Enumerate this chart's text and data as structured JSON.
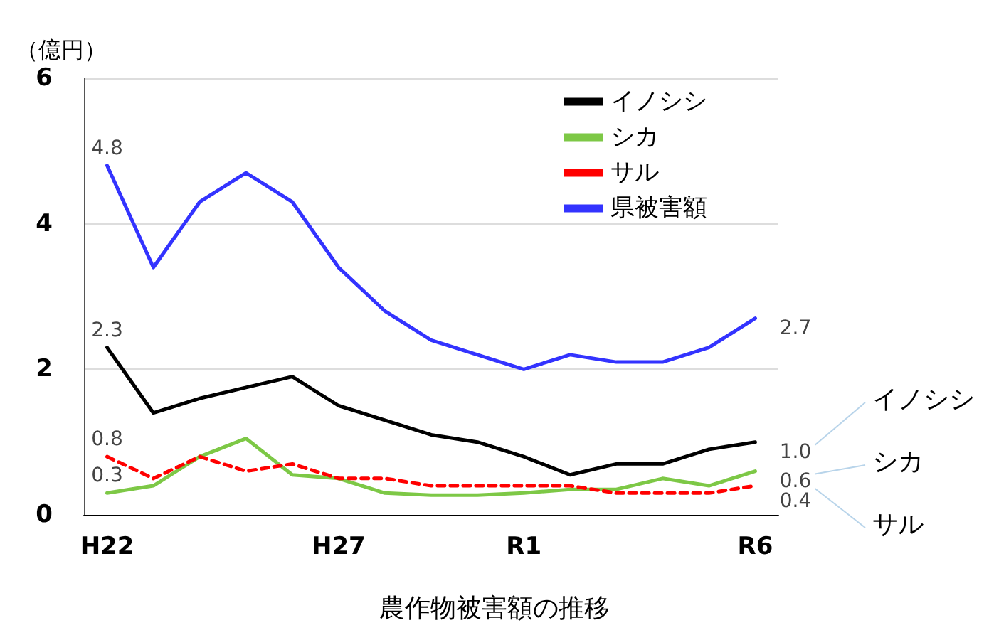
{
  "chart_data": {
    "type": "line",
    "title": "農作物被害額の推移",
    "ylabel": "（億円）",
    "categories": [
      "H22",
      null,
      null,
      null,
      null,
      "H27",
      null,
      null,
      null,
      "R1",
      null,
      null,
      null,
      null,
      "R6"
    ],
    "series": [
      {
        "name": "イノシシ",
        "color": "#000000",
        "line_style": "solid",
        "values": [
          2.3,
          1.4,
          1.6,
          1.75,
          1.9,
          1.5,
          1.3,
          1.1,
          1.0,
          0.8,
          0.55,
          0.7,
          0.7,
          0.9,
          1.0
        ],
        "value_labels": [
          "2.3",
          null,
          null,
          null,
          null,
          null,
          null,
          null,
          null,
          null,
          null,
          null,
          null,
          null,
          "1.0"
        ]
      },
      {
        "name": "シカ",
        "color": "#7dc846",
        "line_style": "solid",
        "values": [
          0.3,
          0.4,
          0.8,
          1.05,
          0.55,
          0.5,
          0.3,
          0.27,
          0.27,
          0.3,
          0.35,
          0.35,
          0.5,
          0.4,
          0.6
        ],
        "value_labels": [
          "0.3",
          null,
          null,
          null,
          null,
          null,
          null,
          null,
          null,
          null,
          null,
          null,
          null,
          null,
          "0.6"
        ]
      },
      {
        "name": "サル",
        "color": "#ff0000",
        "line_style": "dashed",
        "values": [
          0.8,
          0.5,
          0.8,
          0.6,
          0.7,
          0.5,
          0.5,
          0.4,
          0.4,
          0.4,
          0.4,
          0.3,
          0.3,
          0.3,
          0.4
        ],
        "value_labels": [
          "0.8",
          null,
          null,
          null,
          null,
          null,
          null,
          null,
          null,
          null,
          null,
          null,
          null,
          null,
          "0.4"
        ]
      },
      {
        "name": "県被害額",
        "color": "#3333ff",
        "line_style": "solid",
        "values": [
          4.8,
          3.4,
          4.3,
          4.7,
          4.3,
          3.4,
          2.8,
          2.4,
          2.2,
          2.0,
          2.2,
          2.1,
          2.1,
          2.3,
          2.7
        ],
        "value_labels": [
          "4.8",
          null,
          null,
          null,
          null,
          null,
          null,
          null,
          null,
          null,
          null,
          null,
          null,
          null,
          "2.7"
        ]
      }
    ],
    "ylim": [
      0,
      6
    ],
    "yticks": [
      0,
      2,
      4,
      6
    ],
    "grid": "y",
    "legend": "top right",
    "marker": "none",
    "annotations": [
      "イノシシ",
      "シカ",
      "サル"
    ]
  }
}
